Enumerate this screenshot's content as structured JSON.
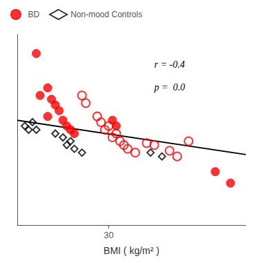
{
  "chart_data": {
    "type": "scatter",
    "xlabel": "BMI ( kg/m² )",
    "annotations": [
      "r = -0.4",
      "p =  0.0"
    ],
    "xlim": [
      18,
      48
    ],
    "ylim": [
      0,
      100
    ],
    "xticks": [
      30
    ],
    "yticks": [],
    "tick_labels": "x",
    "grid": false,
    "legend": "top-left",
    "series": [
      {
        "name": "BD",
        "type": "scatter",
        "marker": "circle",
        "color": "#ff0000",
        "values": [
          [
            20.5,
            90
          ],
          [
            21.0,
            68
          ],
          [
            22.0,
            72
          ],
          [
            22.5,
            66
          ],
          [
            23.0,
            63
          ],
          [
            22.0,
            57
          ],
          [
            23.5,
            60
          ],
          [
            24.0,
            55
          ],
          [
            24.5,
            52
          ],
          [
            25.0,
            50
          ],
          [
            25.5,
            48
          ],
          [
            30.5,
            55
          ],
          [
            31.0,
            52
          ],
          [
            44.0,
            28
          ],
          [
            46.0,
            22
          ]
        ]
      },
      {
        "name": "BD",
        "type": "scatter",
        "marker": "open_circle",
        "color": "#ff0000",
        "values": [
          [
            26.5,
            68
          ],
          [
            27.0,
            64
          ],
          [
            28.5,
            57
          ],
          [
            29.0,
            54
          ],
          [
            29.5,
            50
          ],
          [
            30.0,
            52
          ],
          [
            30.5,
            46
          ],
          [
            31.0,
            48
          ],
          [
            31.5,
            44
          ],
          [
            32.0,
            42
          ],
          [
            32.5,
            40
          ],
          [
            33.5,
            38
          ],
          [
            35.0,
            43
          ],
          [
            36.0,
            42
          ],
          [
            38.0,
            39
          ],
          [
            39.0,
            36
          ],
          [
            40.5,
            44
          ]
        ]
      },
      {
        "name": "Non-mood Controls",
        "type": "scatter",
        "marker": "open_diamond",
        "color": "#000000",
        "values": [
          [
            19.0,
            52
          ],
          [
            19.5,
            50
          ],
          [
            20.0,
            54
          ],
          [
            20.5,
            50
          ],
          [
            23.0,
            48
          ],
          [
            24.0,
            46
          ],
          [
            24.5,
            42
          ],
          [
            25.0,
            44
          ],
          [
            25.5,
            40
          ],
          [
            26.5,
            38
          ],
          [
            35.5,
            38
          ],
          [
            37.0,
            36
          ]
        ]
      },
      {
        "type": "line",
        "color": "#000000",
        "values": [
          [
            18,
            55
          ],
          [
            48,
            37
          ]
        ]
      }
    ]
  }
}
